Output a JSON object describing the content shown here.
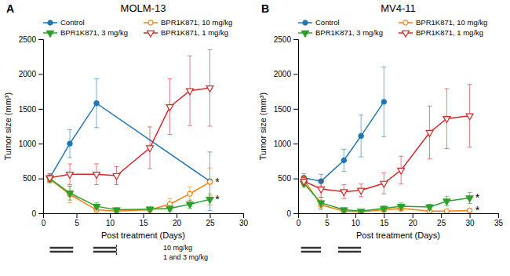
{
  "chart_data": [
    {
      "type": "line",
      "title": "MOLM-13",
      "xlabel": "Post treatment (Days)",
      "ylabel": "Tumor size (mm³)",
      "xlim": [
        0,
        30
      ],
      "ylim": [
        0,
        2500
      ],
      "xticks": [
        0,
        5,
        10,
        15,
        20,
        25,
        30
      ],
      "yticks": [
        0,
        500,
        1000,
        1500,
        2000,
        2500
      ],
      "legend": "top",
      "series": [
        {
          "name": "Control",
          "marker": "circle",
          "x": [
            1,
            4,
            8,
            25
          ],
          "values": [
            510,
            1000,
            1580,
            460
          ],
          "errors": [
            60,
            200,
            350,
            420
          ]
        },
        {
          "name": "BPR1K871, 10 mg/kg",
          "marker": "circle-open",
          "x": [
            1,
            4,
            8,
            11,
            16,
            19,
            22,
            25
          ],
          "values": [
            490,
            270,
            50,
            30,
            50,
            130,
            280,
            450
          ],
          "errors": [
            55,
            120,
            30,
            20,
            40,
            80,
            100,
            200
          ]
        },
        {
          "name": "BPR1K871, 3 mg/kg",
          "marker": "triangle-down",
          "x": [
            1,
            4,
            8,
            11,
            16,
            19,
            22,
            25
          ],
          "values": [
            500,
            290,
            100,
            50,
            60,
            70,
            130,
            200
          ],
          "errors": [
            50,
            100,
            50,
            30,
            30,
            40,
            60,
            80
          ]
        },
        {
          "name": "BPR1K871, 1 mg/kg",
          "marker": "triangle-down-open",
          "x": [
            1,
            4,
            8,
            11,
            16,
            19,
            22,
            25
          ],
          "values": [
            510,
            560,
            560,
            540,
            940,
            1530,
            1760,
            1800
          ],
          "errors": [
            55,
            150,
            150,
            130,
            300,
            400,
            500,
            550
          ]
        }
      ],
      "annotations": [
        {
          "text": "A"
        },
        {
          "text": "*",
          "x": 25.8,
          "y": 450
        },
        {
          "text": "*",
          "x": 25.8,
          "y": 200
        }
      ],
      "dosing": {
        "periods": [
          [
            1,
            4.5
          ],
          [
            7.5,
            11
          ]
        ],
        "end_mark": 11,
        "labels": [
          "10 mg/kg",
          "1 and 3 mg/kg"
        ],
        "label_x": 18
      }
    },
    {
      "type": "line",
      "title": "MV4-11",
      "xlabel": "Post treatment (Days)",
      "ylabel": "Tumor size (mm³)",
      "xlim": [
        0,
        35
      ],
      "ylim": [
        0,
        2500
      ],
      "xticks": [
        0,
        5,
        10,
        15,
        20,
        25,
        30,
        35
      ],
      "yticks": [
        0,
        500,
        1000,
        1500,
        2000,
        2500
      ],
      "legend": "top",
      "series": [
        {
          "name": "Control",
          "marker": "circle",
          "x": [
            1,
            4,
            8,
            11,
            15
          ],
          "values": [
            510,
            460,
            760,
            1110,
            1600
          ],
          "errors": [
            60,
            100,
            160,
            300,
            500
          ]
        },
        {
          "name": "BPR1K871, 10 mg/kg",
          "marker": "circle-open",
          "x": [
            1,
            4,
            8,
            11,
            15,
            18,
            23,
            26,
            30
          ],
          "values": [
            480,
            120,
            30,
            20,
            50,
            70,
            30,
            30,
            40
          ],
          "errors": [
            55,
            70,
            20,
            15,
            30,
            40,
            20,
            20,
            25
          ]
        },
        {
          "name": "BPR1K871, 3 mg/kg",
          "marker": "triangle-down",
          "x": [
            1,
            4,
            8,
            11,
            15,
            18,
            23,
            26,
            30
          ],
          "values": [
            430,
            150,
            50,
            30,
            70,
            100,
            90,
            175,
            220
          ],
          "errors": [
            50,
            80,
            30,
            20,
            40,
            50,
            40,
            70,
            80
          ]
        },
        {
          "name": "BPR1K871, 1 mg/kg",
          "marker": "triangle-down-open",
          "x": [
            1,
            4,
            8,
            11,
            15,
            18,
            23,
            26,
            30
          ],
          "values": [
            460,
            350,
            310,
            330,
            430,
            620,
            1160,
            1360,
            1400
          ],
          "errors": [
            55,
            120,
            100,
            90,
            150,
            200,
            380,
            430,
            450
          ]
        }
      ],
      "annotations": [
        {
          "text": "B"
        },
        {
          "text": "*",
          "x": 31,
          "y": 40
        },
        {
          "text": "*",
          "x": 31,
          "y": 220
        }
      ],
      "dosing": {
        "periods": [
          [
            0.5,
            4
          ],
          [
            7,
            11
          ]
        ]
      }
    }
  ]
}
